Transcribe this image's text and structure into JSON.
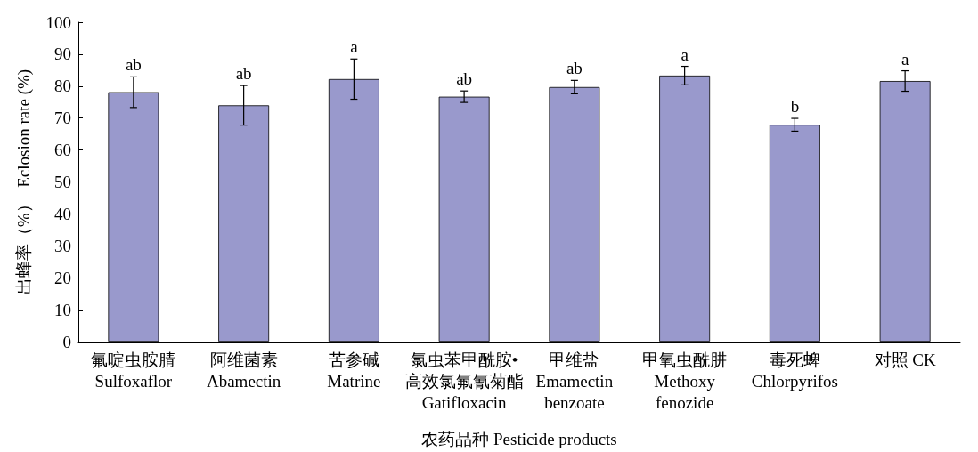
{
  "chart_data": {
    "type": "bar",
    "xlabel": "农药品种 Pesticide products",
    "ylabel": "出蜂率（%）  Eclosion rate (%)",
    "categories": [
      "氟啶虫胺腈\nSulfoxaflor",
      "阿维菌素\nAbamectin",
      "苦参碱\nMatrine",
      "氯虫苯甲酰胺•\n高效氯氟氰菊酯\nGatifloxacin",
      "甲维盐\nEmamectin\nbenzoate",
      "甲氧虫酰肼\nMethoxy\nfenozide",
      "毒死蜱\nChlorpyrifos",
      "对照 CK"
    ],
    "values": [
      78.1,
      74,
      82.2,
      76.7,
      79.7,
      83.3,
      67.9,
      81.6
    ],
    "errors": [
      4.8,
      6.2,
      6.3,
      1.8,
      2.1,
      2.9,
      2.0,
      3.2
    ],
    "value_labels": [
      "ab",
      "ab",
      "a",
      "ab",
      "ab",
      "a",
      "b",
      "a"
    ],
    "color": "#9999cc",
    "ylim": [
      0,
      100
    ],
    "yticks": [
      0,
      10,
      20,
      30,
      40,
      50,
      60,
      70,
      80,
      90,
      100
    ],
    "grid": false
  }
}
